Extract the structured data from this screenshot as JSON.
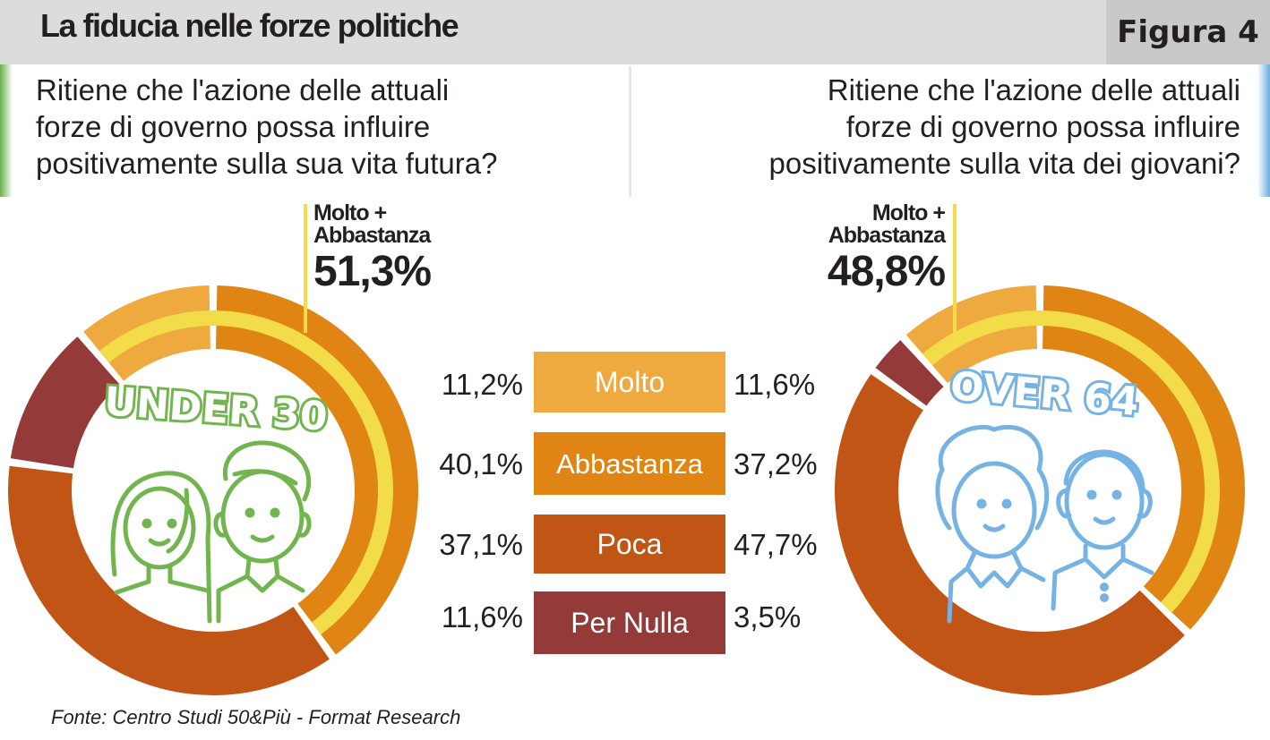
{
  "header": {
    "title": "La fiducia nelle forze politiche",
    "figure_label": "Figura 4"
  },
  "questions": {
    "left": [
      "Ritiene che l'azione delle attuali",
      "forze di governo possa influire",
      "positivamente sulla sua vita futura?"
    ],
    "right": [
      "Ritiene che l'azione delle attuali",
      "forze di governo possa influire",
      "positivamente sulla vita dei giovani?"
    ]
  },
  "callouts": {
    "left": {
      "label_line1": "Molto +",
      "label_line2": "Abbastanza",
      "value": "51,3%"
    },
    "right": {
      "label_line1": "Molto +",
      "label_line2": "Abbastanza",
      "value": "48,8%"
    }
  },
  "groups": {
    "left": "UNDER 30",
    "right": "OVER 64"
  },
  "legend": [
    {
      "label": "Molto",
      "left": "11,2%",
      "right": "11,6%"
    },
    {
      "label": "Abbastanza",
      "left": "40,1%",
      "right": "37,2%"
    },
    {
      "label": "Poca",
      "left": "37,1%",
      "right": "47,7%"
    },
    {
      "label": "Per Nulla",
      "left": "11,6%",
      "right": "3,5%"
    }
  ],
  "source": "Fonte: Centro Studi 50&Più - Format Research",
  "colors": {
    "molto": "#eeaa3e",
    "abbastanza": "#e08514",
    "poca": "#c05515",
    "per_nulla": "#943a38",
    "highlight": "#f2dc4a",
    "under30": "#72b54e",
    "over64": "#75b3e4"
  },
  "chart_data": {
    "type": "pie",
    "style": "donut",
    "categories": [
      "Molto",
      "Abbastanza",
      "Poca",
      "Per Nulla"
    ],
    "series": [
      {
        "name": "UNDER 30",
        "values": [
          11.2,
          40.1,
          37.1,
          11.6
        ],
        "highlight_total": 51.3
      },
      {
        "name": "OVER 64",
        "values": [
          11.6,
          37.2,
          47.7,
          3.5
        ],
        "highlight_total": 48.8
      }
    ],
    "legend_position": "center"
  }
}
